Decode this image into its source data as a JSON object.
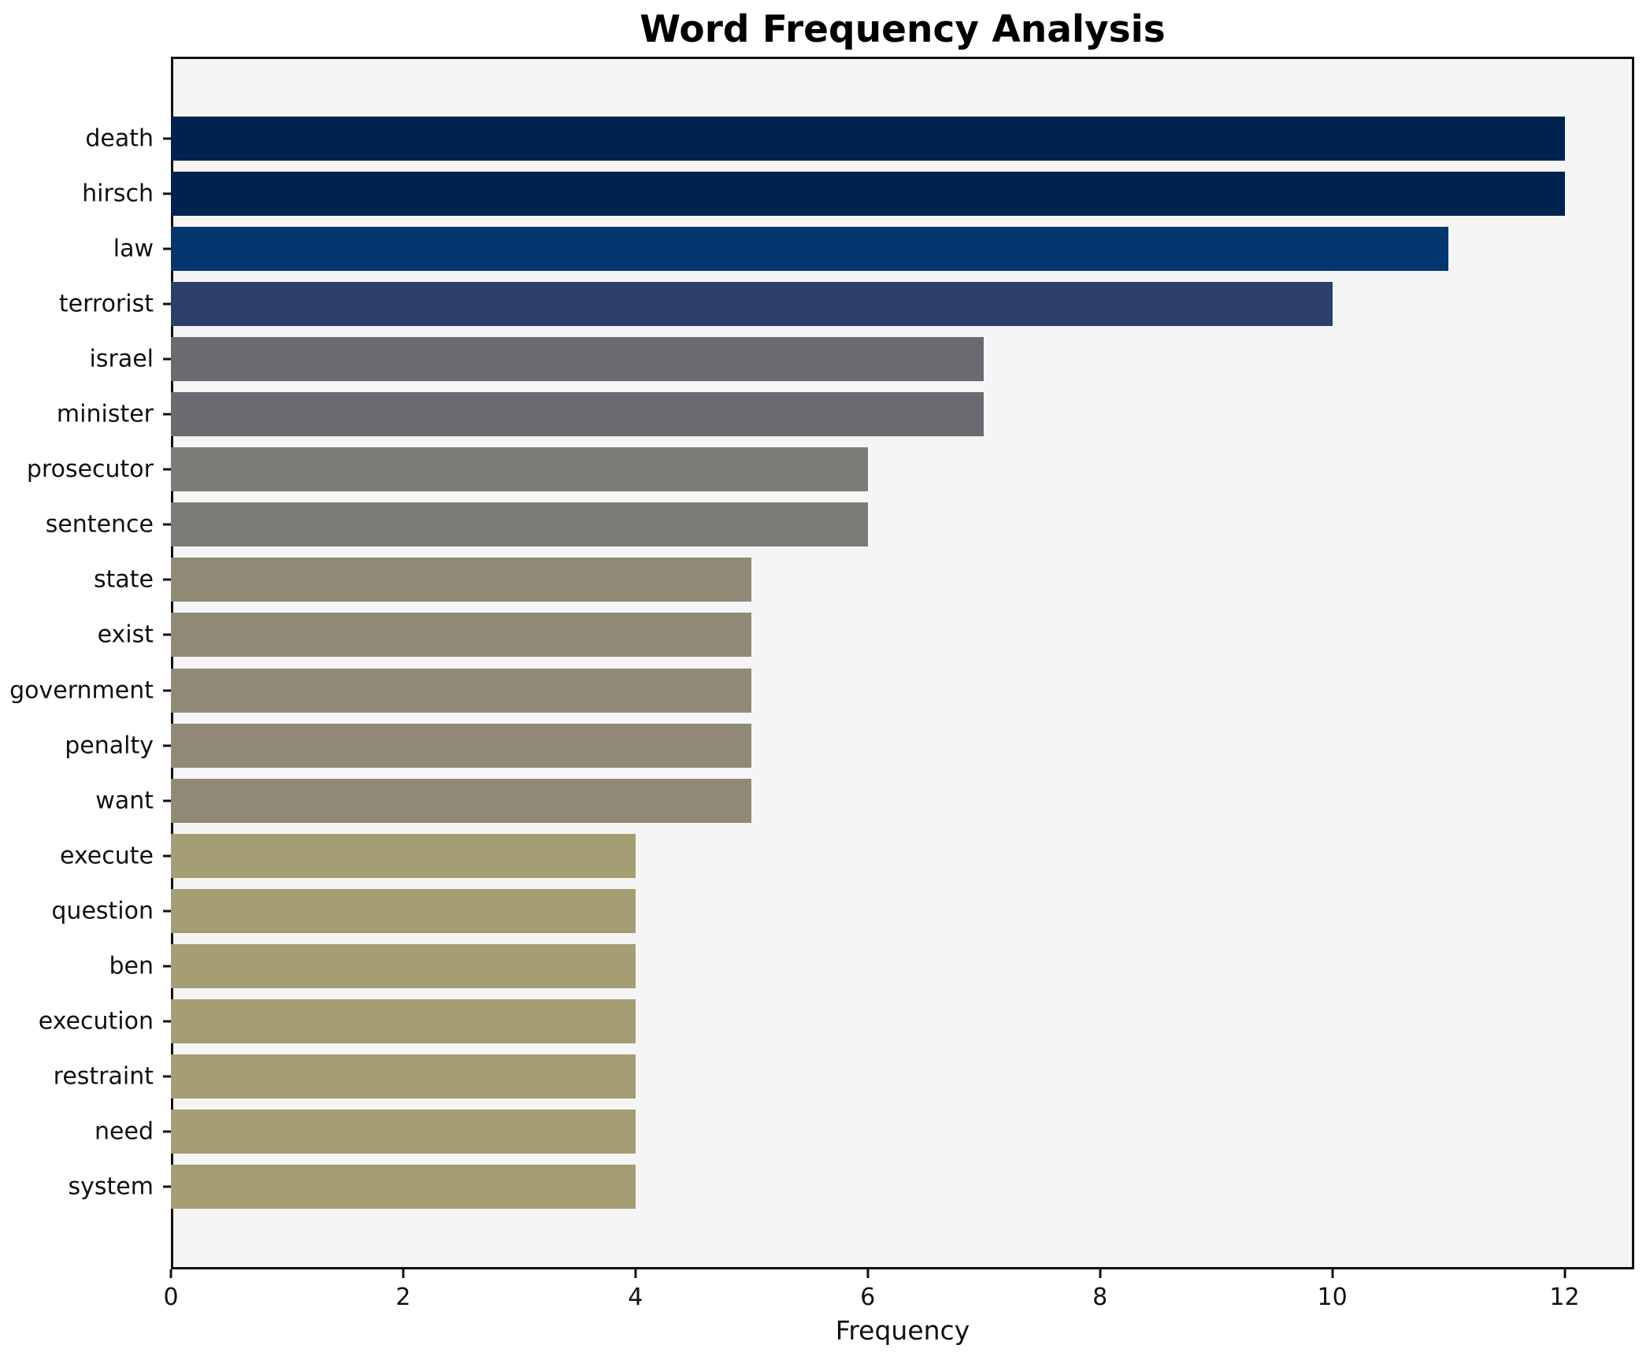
{
  "chart_data": {
    "type": "bar",
    "orientation": "horizontal",
    "title": "Word Frequency Analysis",
    "xlabel": "Frequency",
    "ylabel": "",
    "categories": [
      "death",
      "hirsch",
      "law",
      "terrorist",
      "israel",
      "minister",
      "prosecutor",
      "sentence",
      "state",
      "exist",
      "government",
      "penalty",
      "want",
      "execute",
      "question",
      "ben",
      "execution",
      "restraint",
      "need",
      "system"
    ],
    "values": [
      12,
      12,
      11,
      10,
      7,
      7,
      6,
      6,
      5,
      5,
      5,
      5,
      5,
      4,
      4,
      4,
      4,
      4,
      4,
      4
    ],
    "bar_colors": [
      "#00224e",
      "#00224e",
      "#04356f",
      "#2c3e6b",
      "#6a6b71",
      "#6a6b71",
      "#7c7b76",
      "#7c7b76",
      "#8f8976",
      "#8f8976",
      "#8f8976",
      "#8f8976",
      "#8f8976",
      "#a59d73",
      "#a59d73",
      "#a59d73",
      "#a59d73",
      "#a59d73",
      "#a59d73",
      "#a59d73"
    ],
    "xlim": [
      0,
      12.6
    ],
    "x_ticks": [
      0,
      2,
      4,
      6,
      8,
      10,
      12
    ],
    "grid": "off",
    "legend": "none",
    "plot_background": "#f5f5f6",
    "figure_background": "#ffffff",
    "spine_color": "#101010",
    "text_color": "#111111"
  }
}
